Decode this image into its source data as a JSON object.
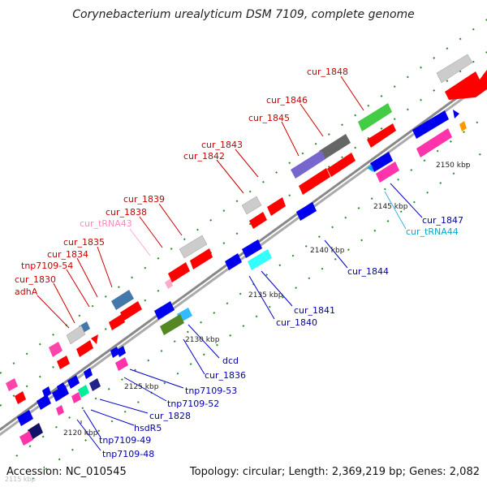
{
  "title": "Corynebacterium urealyticum DSM 7109, complete genome",
  "accession": "Accession: NC_010545",
  "topology": "Topology: circular; Length: 2,369,219 bp; Genes: 2,082",
  "corner_text": "2115 kbp",
  "colors": {
    "label_red": "#cc0000",
    "label_blue": "#0000aa",
    "label_pink": "#ff88bb",
    "label_cyan": "#00aacc",
    "backbone": "#999999"
  },
  "kbp_ticks": [
    "2120 kbp",
    "2125 kbp",
    "2130 kbp",
    "2135 kbp",
    "2140 kbp",
    "2145 kbp",
    "2150 kbp"
  ],
  "labels_upper": [
    "adhA",
    "cur_1830",
    "tnp7109-54",
    "cur_1834",
    "cur_1835",
    "cur_tRNA43",
    "cur_1838",
    "cur_1839",
    "cur_1842",
    "cur_1843",
    "cur_1845",
    "cur_1846",
    "cur_1848"
  ],
  "labels_lower": [
    "tnp7109-48",
    "tnp7109-49",
    "hsdR5",
    "cur_1828",
    "tnp7109-52",
    "tnp7109-53",
    "cur_1836",
    "dcd",
    "cur_1840",
    "cur_1841",
    "cur_1844",
    "cur_tRNA44",
    "cur_1847"
  ]
}
